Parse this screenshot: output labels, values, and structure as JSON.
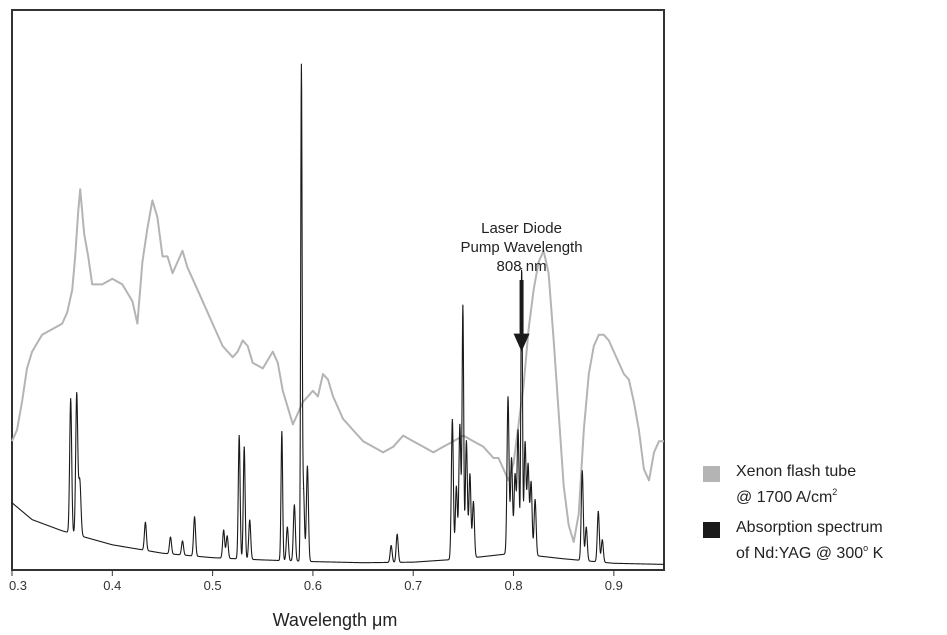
{
  "chart_data": {
    "type": "line",
    "xlabel": "Wavelength  μm",
    "xlim": [
      0.3,
      0.95
    ],
    "ylim": [
      0,
      100
    ],
    "x_ticks": [
      {
        "v": 0.3,
        "label": "0.3"
      },
      {
        "v": 0.4,
        "label": "0.4"
      },
      {
        "v": 0.5,
        "label": "0.5"
      },
      {
        "v": 0.6,
        "label": "0.6"
      },
      {
        "v": 0.7,
        "label": "0.7"
      },
      {
        "v": 0.8,
        "label": "0.8"
      },
      {
        "v": 0.9,
        "label": "0.9"
      }
    ],
    "grid": false,
    "legend_position": "right-bottom",
    "annotation": {
      "lines": [
        "Laser Diode",
        "Pump Wavelength",
        "808 nm"
      ],
      "x": 0.808,
      "arrow_tip_y": 39
    },
    "series": [
      {
        "name": "xenon",
        "color": "#b4b4b4",
        "legend_lines": [
          "Xenon flash tube",
          "@ 1700 A/cm"
        ],
        "legend_sup": "2",
        "x": [
          0.3,
          0.305,
          0.31,
          0.315,
          0.32,
          0.33,
          0.34,
          0.35,
          0.355,
          0.36,
          0.363,
          0.366,
          0.368,
          0.372,
          0.376,
          0.38,
          0.39,
          0.4,
          0.41,
          0.42,
          0.425,
          0.43,
          0.435,
          0.44,
          0.445,
          0.45,
          0.455,
          0.46,
          0.465,
          0.47,
          0.475,
          0.48,
          0.49,
          0.5,
          0.51,
          0.52,
          0.525,
          0.53,
          0.535,
          0.54,
          0.55,
          0.56,
          0.565,
          0.57,
          0.58,
          0.59,
          0.595,
          0.6,
          0.605,
          0.61,
          0.615,
          0.62,
          0.63,
          0.64,
          0.65,
          0.66,
          0.67,
          0.68,
          0.69,
          0.7,
          0.71,
          0.72,
          0.73,
          0.74,
          0.75,
          0.76,
          0.77,
          0.78,
          0.785,
          0.79,
          0.795,
          0.8,
          0.81,
          0.815,
          0.82,
          0.825,
          0.83,
          0.835,
          0.84,
          0.845,
          0.85,
          0.855,
          0.86,
          0.865,
          0.87,
          0.875,
          0.88,
          0.885,
          0.89,
          0.895,
          0.9,
          0.91,
          0.915,
          0.92,
          0.925,
          0.93,
          0.935,
          0.94,
          0.945,
          0.95
        ],
        "y": [
          23,
          25,
          30,
          36,
          39,
          42,
          43,
          44,
          46,
          50,
          56,
          64,
          68,
          60,
          56,
          51,
          51,
          52,
          51,
          48,
          44,
          55,
          61,
          66,
          63,
          56,
          56,
          53,
          55,
          57,
          54,
          52,
          48,
          44,
          40,
          38,
          39,
          41,
          40,
          37,
          36,
          39,
          37,
          32,
          26,
          30,
          31,
          32,
          31,
          35,
          34,
          31,
          27,
          25,
          23,
          22,
          21,
          22,
          24,
          23,
          22,
          21,
          22,
          23,
          24,
          23,
          22,
          20,
          20,
          18,
          16,
          19,
          33,
          43,
          50,
          55,
          57,
          53,
          41,
          28,
          15,
          8,
          5,
          10,
          25,
          35,
          40,
          42,
          42,
          41,
          39,
          35,
          34,
          30,
          25,
          18,
          16,
          21,
          23,
          23
        ]
      },
      {
        "name": "ndyag",
        "color": "#1a1a1a",
        "legend_lines": [
          "Absorption spectrum",
          "of Nd:YAG @ 300"
        ],
        "legend_tail": " K",
        "legend_sup": "o",
        "baseline_x": [
          0.3,
          0.32,
          0.35,
          0.4,
          0.45,
          0.5,
          0.55,
          0.6,
          0.65,
          0.7,
          0.75,
          0.8,
          0.85,
          0.9,
          0.95
        ],
        "baseline_y": [
          12,
          9,
          7,
          4.5,
          3,
          2.2,
          1.8,
          1.5,
          1.3,
          1.4,
          2,
          3,
          2,
          1.2,
          1
        ],
        "peaks": [
          {
            "x": 0.3585,
            "h": 24,
            "w": 0.001
          },
          {
            "x": 0.3645,
            "h": 25,
            "w": 0.001
          },
          {
            "x": 0.3675,
            "h": 10,
            "w": 0.0012
          },
          {
            "x": 0.433,
            "h": 5,
            "w": 0.001
          },
          {
            "x": 0.458,
            "h": 3,
            "w": 0.001
          },
          {
            "x": 0.47,
            "h": 2.5,
            "w": 0.001
          },
          {
            "x": 0.482,
            "h": 7,
            "w": 0.001
          },
          {
            "x": 0.511,
            "h": 5,
            "w": 0.001
          },
          {
            "x": 0.5145,
            "h": 4,
            "w": 0.001
          },
          {
            "x": 0.5265,
            "h": 22,
            "w": 0.0009
          },
          {
            "x": 0.5315,
            "h": 20,
            "w": 0.0009
          },
          {
            "x": 0.537,
            "h": 7,
            "w": 0.001
          },
          {
            "x": 0.569,
            "h": 23,
            "w": 0.0008
          },
          {
            "x": 0.5745,
            "h": 6,
            "w": 0.001
          },
          {
            "x": 0.5815,
            "h": 10,
            "w": 0.001
          },
          {
            "x": 0.5885,
            "h": 87,
            "w": 0.0007
          },
          {
            "x": 0.5905,
            "h": 13,
            "w": 0.001
          },
          {
            "x": 0.5945,
            "h": 17,
            "w": 0.001
          },
          {
            "x": 0.678,
            "h": 3,
            "w": 0.001
          },
          {
            "x": 0.684,
            "h": 5,
            "w": 0.001
          },
          {
            "x": 0.739,
            "h": 25,
            "w": 0.001
          },
          {
            "x": 0.743,
            "h": 13,
            "w": 0.001
          },
          {
            "x": 0.7465,
            "h": 24,
            "w": 0.001
          },
          {
            "x": 0.7495,
            "h": 45,
            "w": 0.0008
          },
          {
            "x": 0.753,
            "h": 21,
            "w": 0.001
          },
          {
            "x": 0.7565,
            "h": 15,
            "w": 0.001
          },
          {
            "x": 0.76,
            "h": 10,
            "w": 0.001
          },
          {
            "x": 0.7945,
            "h": 28,
            "w": 0.001
          },
          {
            "x": 0.798,
            "h": 17,
            "w": 0.001
          },
          {
            "x": 0.8015,
            "h": 14,
            "w": 0.001
          },
          {
            "x": 0.8045,
            "h": 22,
            "w": 0.001
          },
          {
            "x": 0.8081,
            "h": 51,
            "w": 0.0008
          },
          {
            "x": 0.8115,
            "h": 20,
            "w": 0.001
          },
          {
            "x": 0.8145,
            "h": 16,
            "w": 0.001
          },
          {
            "x": 0.8175,
            "h": 13,
            "w": 0.001
          },
          {
            "x": 0.8215,
            "h": 10,
            "w": 0.001
          },
          {
            "x": 0.8685,
            "h": 16,
            "w": 0.001
          },
          {
            "x": 0.8725,
            "h": 6,
            "w": 0.001
          },
          {
            "x": 0.8845,
            "h": 9,
            "w": 0.001
          },
          {
            "x": 0.8885,
            "h": 4,
            "w": 0.001
          }
        ]
      }
    ]
  }
}
